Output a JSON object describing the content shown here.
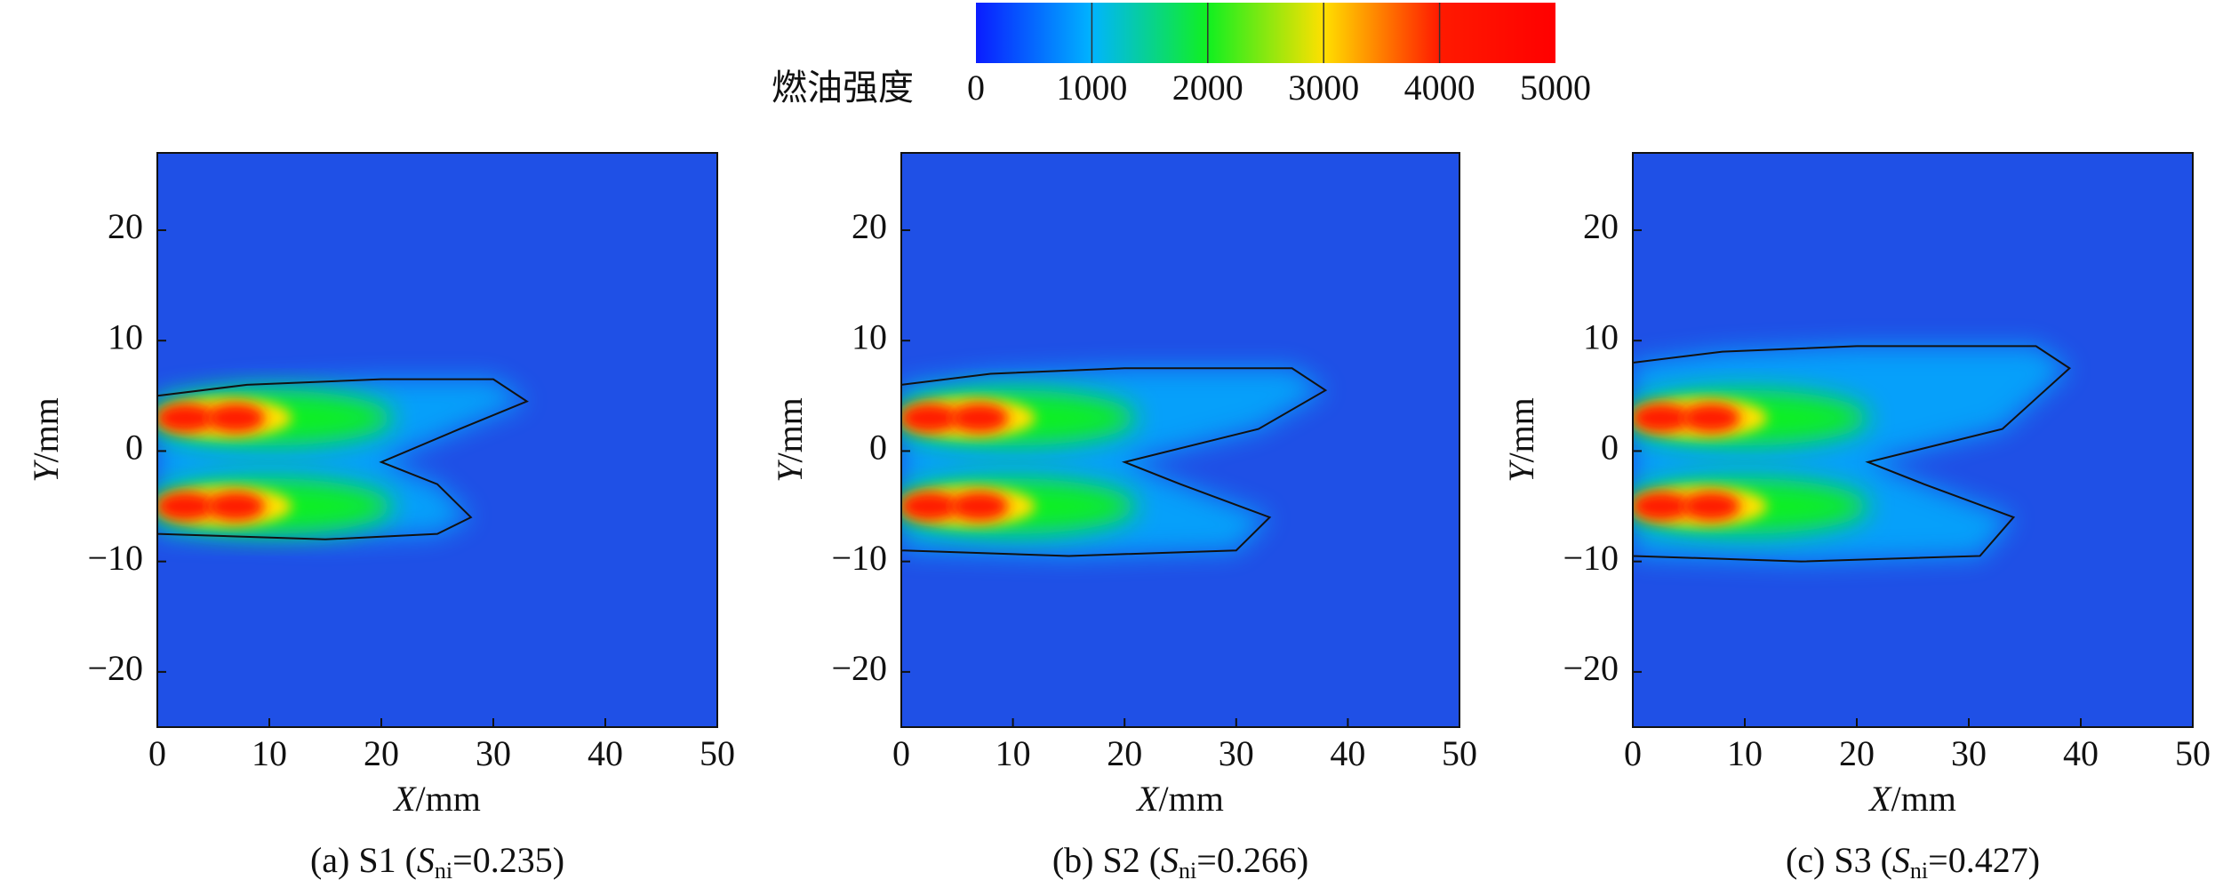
{
  "colorbar": {
    "label": "燃油强度",
    "lim": [
      0,
      5000
    ],
    "ticks": [
      0,
      1000,
      2000,
      3000,
      4000,
      5000
    ],
    "colors": [
      "#0a1cff",
      "#00b4ff",
      "#10f020",
      "#ffe000",
      "#ff1a00",
      "#ff0000"
    ]
  },
  "chart_data": [
    {
      "type": "heatmap",
      "xlim": [
        0,
        50
      ],
      "ylim": [
        -25,
        27
      ],
      "xticks": [
        0,
        10,
        20,
        30,
        40,
        50
      ],
      "yticks": [
        {
          "value": -20,
          "label": "−20"
        },
        {
          "value": -10,
          "label": "−10"
        },
        0,
        10,
        20
      ],
      "x_label": {
        "var": "X",
        "unit": "/mm"
      },
      "y_label": {
        "var": "Y",
        "unit": "/mm"
      },
      "caption": {
        "prefix": "(a) S1 (",
        "symbol": "S",
        "subscript": "ni",
        "suffix": "=0.235)"
      }
    },
    {
      "type": "heatmap",
      "xlim": [
        0,
        50
      ],
      "ylim": [
        -25,
        27
      ],
      "xticks": [
        0,
        10,
        20,
        30,
        40,
        50
      ],
      "yticks": [
        {
          "value": -20,
          "label": "−20"
        },
        {
          "value": -10,
          "label": "−10"
        },
        0,
        10,
        20
      ],
      "x_label": {
        "var": "X",
        "unit": "/mm"
      },
      "y_label": {
        "var": "Y",
        "unit": "/mm"
      },
      "caption": {
        "prefix": "(b) S2 (",
        "symbol": "S",
        "subscript": "ni",
        "suffix": "=0.266)"
      }
    },
    {
      "type": "heatmap",
      "xlim": [
        0,
        50
      ],
      "ylim": [
        -25,
        27
      ],
      "xticks": [
        0,
        10,
        20,
        30,
        40,
        50
      ],
      "yticks": [
        {
          "value": -20,
          "label": "−20"
        },
        {
          "value": -10,
          "label": "−10"
        },
        0,
        10,
        20
      ],
      "x_label": {
        "var": "X",
        "unit": "/mm"
      },
      "y_label": {
        "var": "Y",
        "unit": "/mm"
      },
      "caption": {
        "prefix": "(c) S3 (",
        "symbol": "S",
        "subscript": "ni",
        "suffix": "=0.427)"
      }
    }
  ]
}
